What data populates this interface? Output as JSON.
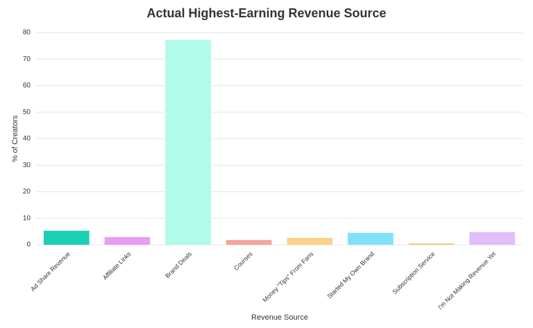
{
  "chart_data": {
    "type": "bar",
    "title": "Actual Highest-Earning Revenue Source",
    "x_label": "Revenue Source",
    "y_label": "% of Creators",
    "categories": [
      "Ad Share Revenue",
      "Affiliate Links",
      "Brand Deals",
      "Courses",
      "Money \"Tips\" From Fans",
      "Started My Own Brand",
      "Subscription Service",
      "I'm Not Making Revenue Yet"
    ],
    "values": [
      5.3,
      2.9,
      77.2,
      1.8,
      2.6,
      4.5,
      0.5,
      4.8
    ],
    "colors": [
      "#1dcfb5",
      "#e99cf5",
      "#b0fbea",
      "#f6a39a",
      "#fbd28a",
      "#80e1fa",
      "#f3c877",
      "#e1bdfa"
    ],
    "ylim": [
      0,
      80
    ],
    "yticks": [
      0,
      10,
      20,
      30,
      40,
      50,
      60,
      70,
      80
    ],
    "grid": true
  }
}
